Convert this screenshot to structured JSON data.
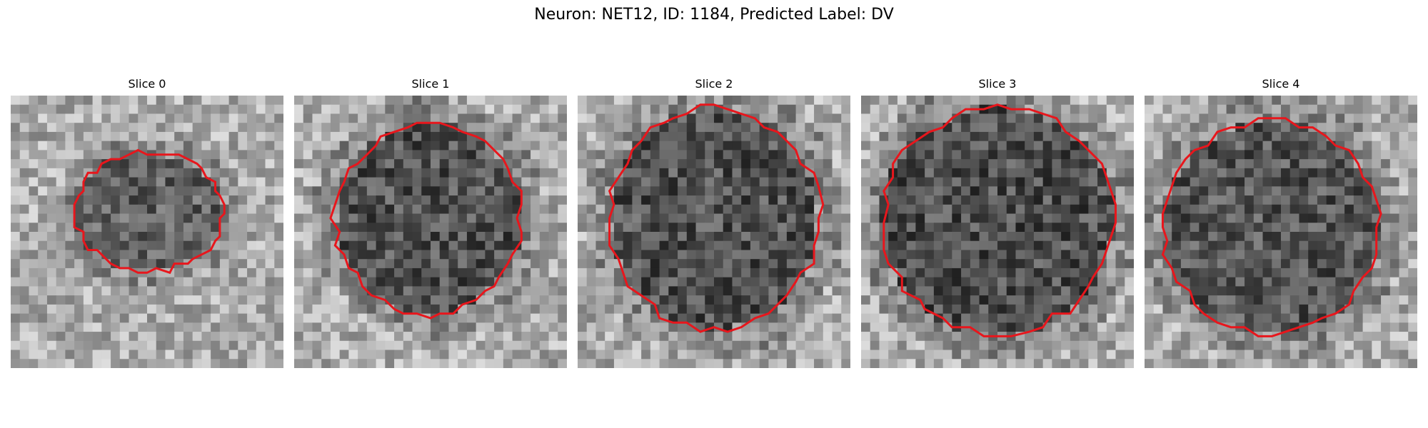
{
  "figure": {
    "title": "Neuron: NET12, ID: 1184, Predicted Label: DV"
  },
  "panels": [
    {
      "title": "Slice 0",
      "seed": 11,
      "dark_center": 0.15,
      "outline": "contour-slice-0"
    },
    {
      "title": "Slice 1",
      "seed": 23,
      "dark_center": 0.4,
      "outline": "contour-slice-1"
    },
    {
      "title": "Slice 2",
      "seed": 37,
      "dark_center": 0.4,
      "outline": "contour-slice-2"
    },
    {
      "title": "Slice 3",
      "seed": 51,
      "dark_center": 0.45,
      "outline": "contour-slice-3"
    },
    {
      "title": "Slice 4",
      "seed": 67,
      "dark_center": 0.35,
      "outline": "contour-slice-4"
    }
  ],
  "colors": {
    "contour": "#e8161c",
    "background": "#ffffff"
  }
}
